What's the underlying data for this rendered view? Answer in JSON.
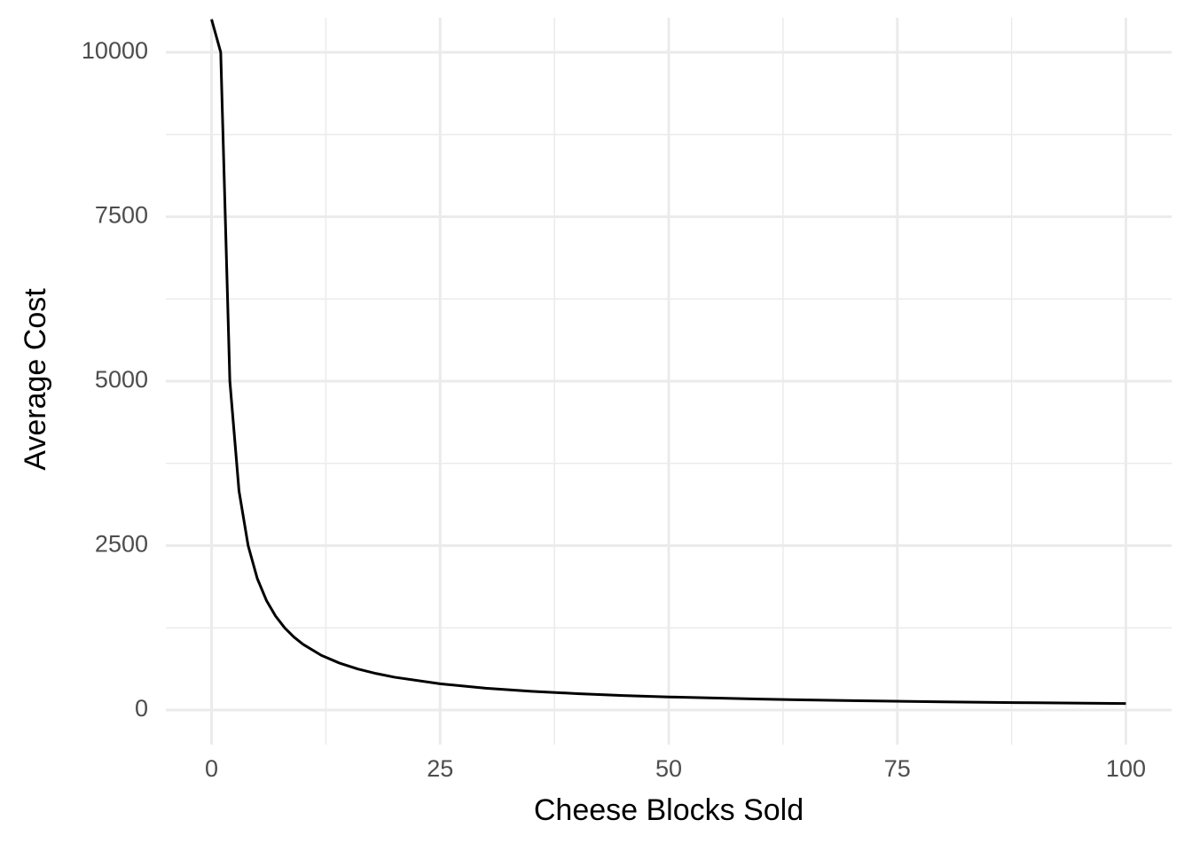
{
  "chart_data": {
    "type": "line",
    "x_label": "Cheese Blocks Sold",
    "y_label": "Average Cost",
    "x": [
      0,
      1,
      2,
      3,
      4,
      5,
      6,
      7,
      8,
      9,
      10,
      12,
      14,
      16,
      18,
      20,
      25,
      30,
      35,
      40,
      45,
      50,
      60,
      70,
      80,
      90,
      100
    ],
    "series": [
      {
        "color": "#000000",
        "values": [
          10500,
          10000,
          5000,
          3333,
          2500,
          2000,
          1667,
          1429,
          1250,
          1111,
          1000,
          833,
          714,
          625,
          556,
          500,
          400,
          333,
          286,
          250,
          222,
          200,
          167,
          143,
          125,
          111,
          100
        ]
      }
    ],
    "xlim": [
      -5,
      105
    ],
    "ylim": [
      -525,
      10525
    ],
    "xticks": [
      0,
      25,
      50,
      75,
      100
    ],
    "yticks": [
      0,
      2500,
      5000,
      7500,
      10000
    ],
    "x_minor_ticks": [
      12.5,
      37.5,
      62.5,
      87.5
    ],
    "y_minor_ticks": [
      1250,
      3750,
      6250,
      8750
    ],
    "grid": true
  }
}
